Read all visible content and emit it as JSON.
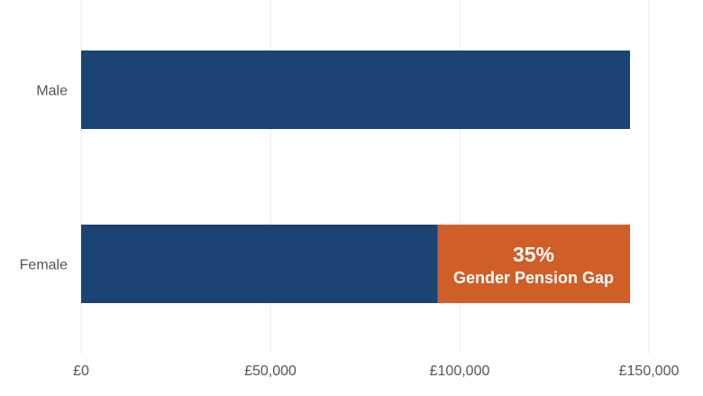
{
  "chart_data": {
    "type": "bar",
    "orientation": "horizontal",
    "stacked": true,
    "categories": [
      "Male",
      "Female"
    ],
    "series": [
      {
        "values": [
          145000,
          94250
        ],
        "color": "#1b4373"
      },
      {
        "values": [
          0,
          50750
        ],
        "color": "#d05e27"
      }
    ],
    "annotation": {
      "value": "35%",
      "label": "Gender Pension Gap",
      "color": "#ffffff"
    },
    "xlim": [
      0,
      150000
    ],
    "xticks": [
      0,
      50000,
      100000,
      150000
    ],
    "xtick_labels": [
      "£0",
      "£50,000",
      "£100,000",
      "£150,000"
    ],
    "grid": true,
    "title": "",
    "xlabel": "",
    "ylabel": ""
  }
}
